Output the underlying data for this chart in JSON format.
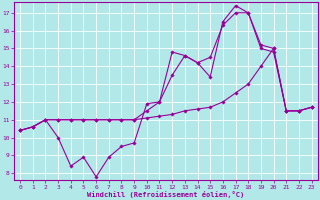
{
  "xlabel": "Windchill (Refroidissement éolien,°C)",
  "bg_color": "#b2e8e8",
  "line_color": "#990099",
  "xlim_min": -0.5,
  "xlim_max": 23.5,
  "ylim_min": 7.6,
  "ylim_max": 17.6,
  "yticks": [
    8,
    9,
    10,
    11,
    12,
    13,
    14,
    15,
    16,
    17
  ],
  "xticks": [
    0,
    1,
    2,
    3,
    4,
    5,
    6,
    7,
    8,
    9,
    10,
    11,
    12,
    13,
    14,
    15,
    16,
    17,
    18,
    19,
    20,
    21,
    22,
    23
  ],
  "line1_x": [
    0,
    1,
    2,
    3,
    4,
    5,
    6,
    7,
    8,
    9,
    10,
    11,
    12,
    13,
    14,
    15,
    16,
    17,
    18,
    19,
    20,
    21,
    22,
    23
  ],
  "line1_y": [
    10.4,
    10.6,
    11.0,
    10.0,
    8.4,
    8.9,
    7.8,
    8.9,
    9.5,
    9.7,
    11.9,
    12.0,
    14.8,
    14.6,
    14.2,
    13.4,
    16.5,
    17.4,
    17.0,
    15.0,
    14.8,
    11.5,
    11.5,
    11.7
  ],
  "line2_x": [
    0,
    1,
    2,
    3,
    4,
    5,
    6,
    7,
    8,
    9,
    10,
    11,
    12,
    13,
    14,
    15,
    16,
    17,
    18,
    19,
    20,
    21,
    22,
    23
  ],
  "line2_y": [
    10.4,
    10.6,
    11.0,
    11.0,
    11.0,
    11.0,
    11.0,
    11.0,
    11.0,
    11.0,
    11.1,
    11.2,
    11.3,
    11.5,
    11.6,
    11.7,
    12.0,
    12.5,
    13.0,
    14.0,
    15.0,
    11.5,
    11.5,
    11.7
  ],
  "line3_x": [
    0,
    1,
    2,
    3,
    4,
    5,
    6,
    7,
    8,
    9,
    10,
    11,
    12,
    13,
    14,
    15,
    16,
    17,
    18,
    19,
    20,
    21,
    22,
    23
  ],
  "line3_y": [
    10.4,
    10.6,
    11.0,
    11.0,
    11.0,
    11.0,
    11.0,
    11.0,
    11.0,
    11.0,
    11.5,
    12.0,
    13.5,
    14.6,
    14.2,
    14.5,
    16.3,
    17.0,
    17.0,
    15.2,
    15.0,
    11.5,
    11.5,
    11.7
  ]
}
